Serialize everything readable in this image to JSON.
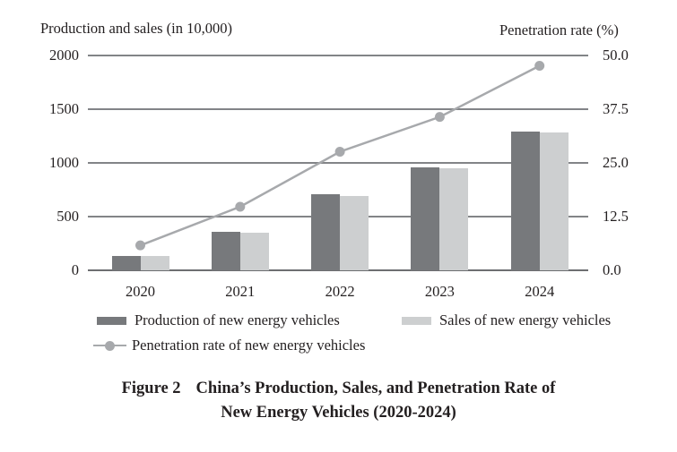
{
  "figure": {
    "caption_label": "Figure 2",
    "caption_line1": "China’s Production, Sales, and Penetration Rate of",
    "caption_line2": "New Energy Vehicles (2020-2024)"
  },
  "chart_data": {
    "type": "bar+line",
    "title": "China’s Production, Sales, and Penetration Rate of New Energy Vehicles (2020-2024)",
    "categories": [
      "2020",
      "2021",
      "2022",
      "2023",
      "2024"
    ],
    "series": [
      {
        "name": "Production of new energy vehicles",
        "type": "bar",
        "axis": "left",
        "color": "#77797c",
        "values": [
          136.6,
          354.5,
          705.8,
          958.7,
          1288.8
        ]
      },
      {
        "name": "Sales of new energy vehicles",
        "type": "bar",
        "axis": "left",
        "color": "#cdcfd0",
        "values": [
          136.7,
          352.1,
          688.7,
          949.5,
          1286.6
        ]
      },
      {
        "name": "Penetration rate of new energy vehicles",
        "type": "line",
        "axis": "right",
        "color": "#a7a9ac",
        "values": [
          5.8,
          14.8,
          27.6,
          35.7,
          47.6
        ]
      }
    ],
    "left_axis": {
      "title": "Production and sales (in 10,000)",
      "ticks": [
        "0",
        "500",
        "1000",
        "1500",
        "2000"
      ],
      "min": 0,
      "max": 2000
    },
    "right_axis": {
      "title": "Penetration rate (%)",
      "ticks": [
        "0.0",
        "12.5",
        "25.0",
        "37.5",
        "50.0"
      ],
      "min": 0,
      "max": 50
    },
    "grid": true,
    "legend_position": "bottom",
    "colors": {
      "grid_line": "#828487",
      "axis_line": "#6d6e71",
      "text": "#231f20",
      "background": "#ffffff"
    }
  }
}
